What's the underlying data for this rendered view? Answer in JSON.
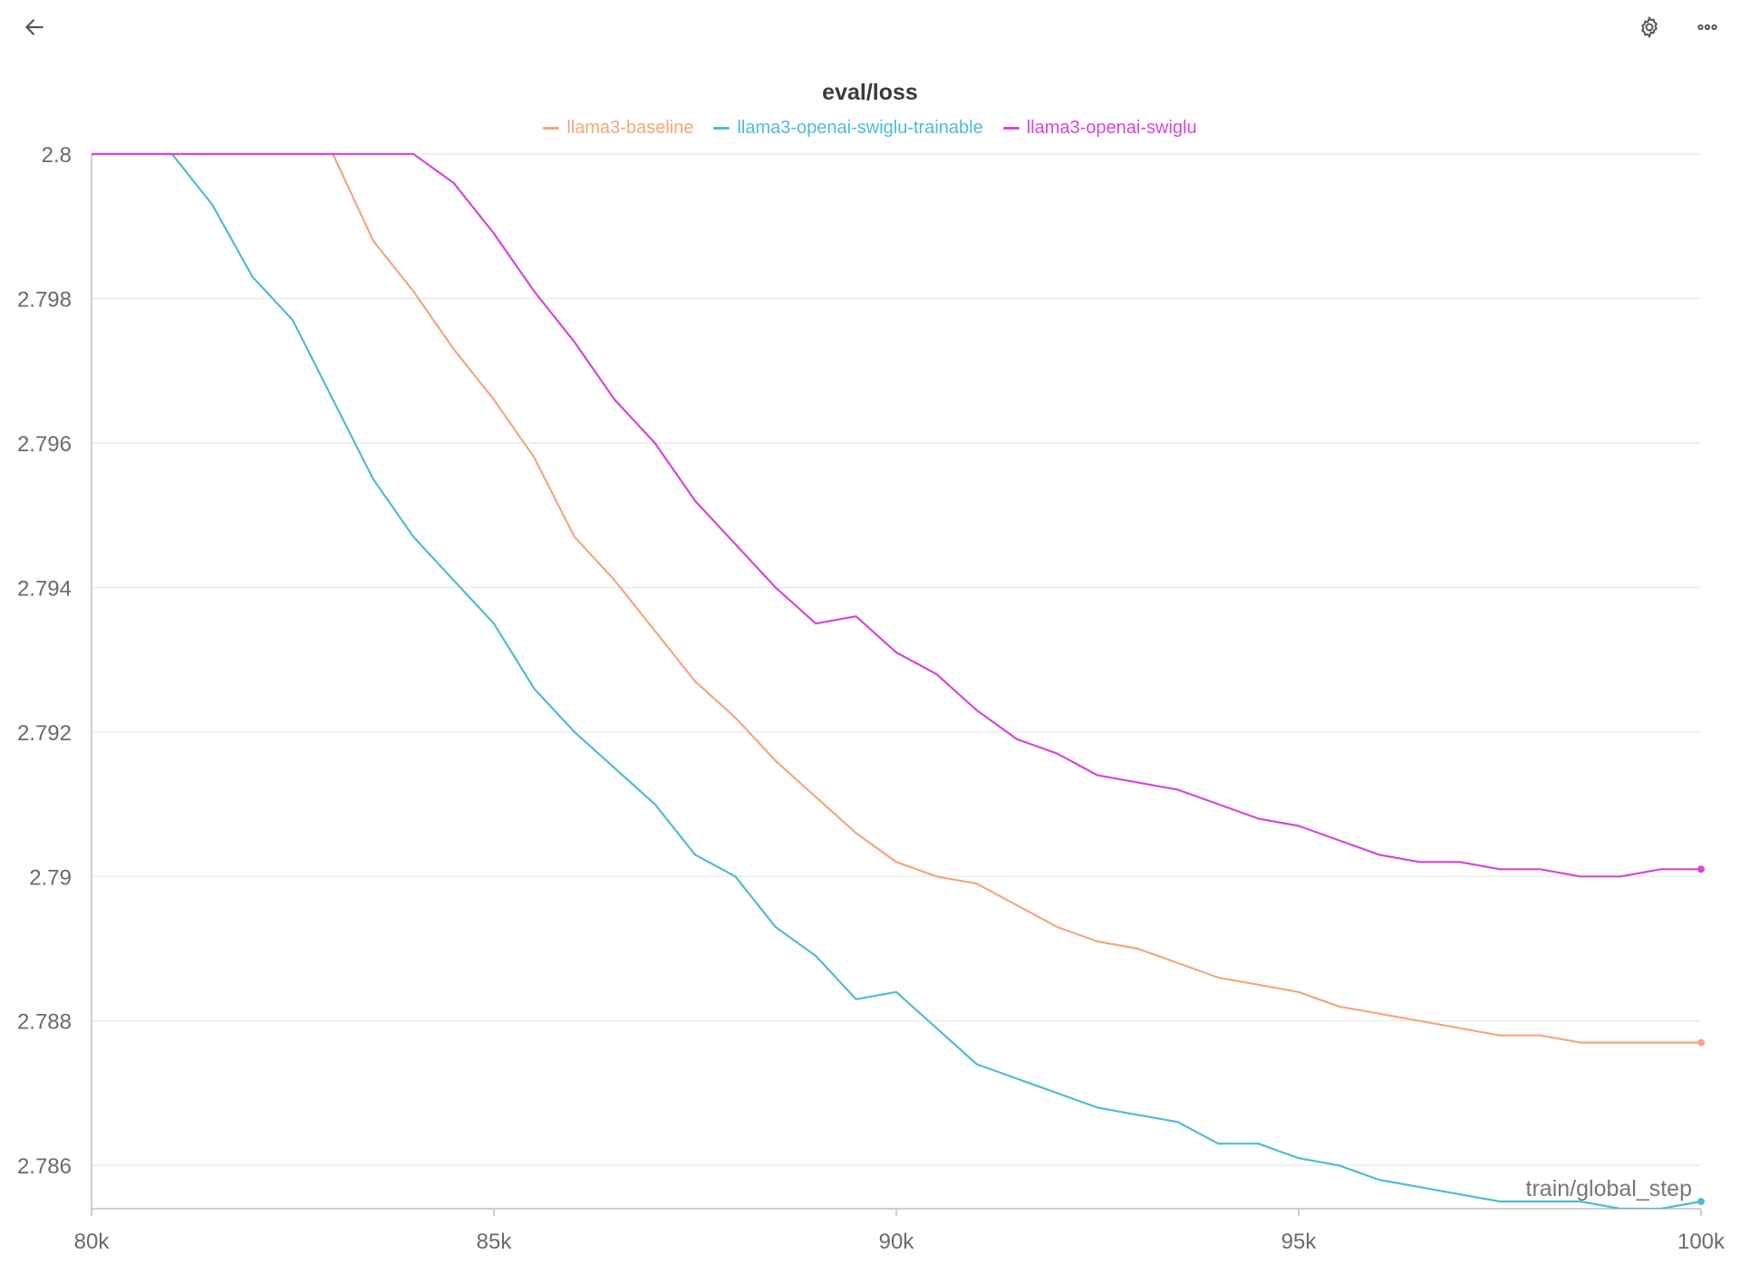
{
  "toolbar": {
    "back_icon": "arrow-left-icon",
    "settings_icon": "gear-icon",
    "more_icon": "more-horizontal-icon"
  },
  "chart_data": {
    "type": "line",
    "title": "eval/loss",
    "xlabel": "train/global_step",
    "ylabel": "",
    "xlim": [
      80000,
      100000
    ],
    "ylim": [
      2.7854,
      2.8
    ],
    "x_ticks": [
      80000,
      85000,
      90000,
      95000,
      100000
    ],
    "x_tick_labels": [
      "80k",
      "85k",
      "90k",
      "95k",
      "100k"
    ],
    "y_ticks": [
      2.786,
      2.788,
      2.79,
      2.792,
      2.794,
      2.796,
      2.798,
      2.8
    ],
    "y_tick_labels": [
      "2.786",
      "2.788",
      "2.79",
      "2.792",
      "2.794",
      "2.796",
      "2.798",
      "2.8"
    ],
    "grid": true,
    "legend_position": "top-center",
    "x": [
      80000,
      81000,
      81500,
      82000,
      82500,
      83000,
      83500,
      84000,
      84500,
      85000,
      85500,
      86000,
      86500,
      87000,
      87500,
      88000,
      88500,
      89000,
      89500,
      90000,
      90500,
      91000,
      91500,
      92000,
      92500,
      93000,
      93500,
      94000,
      94500,
      95000,
      95500,
      96000,
      96500,
      97000,
      97500,
      98000,
      98500,
      99000,
      99500,
      100000
    ],
    "series": [
      {
        "name": "llama3-baseline",
        "color": "#f5a67e",
        "values": [
          2.8,
          2.8,
          2.8,
          2.8,
          2.8,
          2.8,
          2.7988,
          2.7981,
          2.7973,
          2.7966,
          2.7958,
          2.7947,
          2.7941,
          2.7934,
          2.7927,
          2.7922,
          2.7916,
          2.7911,
          2.7906,
          2.7902,
          2.79,
          2.7899,
          2.7896,
          2.7893,
          2.7891,
          2.789,
          2.7888,
          2.7886,
          2.7885,
          2.7884,
          2.7882,
          2.7881,
          2.788,
          2.7879,
          2.7878,
          2.7878,
          2.7877,
          2.7877,
          2.7877,
          2.7877
        ]
      },
      {
        "name": "llama3-openai-swiglu-trainable",
        "color": "#4ebcd5",
        "values": [
          2.8,
          2.8,
          2.7993,
          2.7983,
          2.7977,
          2.7966,
          2.7955,
          2.7947,
          2.7941,
          2.7935,
          2.7926,
          2.792,
          2.7915,
          2.791,
          2.7903,
          2.79,
          2.7893,
          2.7889,
          2.7883,
          2.7884,
          2.7879,
          2.7874,
          2.7872,
          2.787,
          2.7868,
          2.7867,
          2.7866,
          2.7863,
          2.7863,
          2.7861,
          2.786,
          2.7858,
          2.7857,
          2.7856,
          2.7855,
          2.7855,
          2.7855,
          2.7854,
          2.7854,
          2.7855
        ]
      },
      {
        "name": "llama3-openai-swiglu",
        "color": "#d846d8",
        "values": [
          2.8,
          2.8,
          2.8,
          2.8,
          2.8,
          2.8,
          2.8,
          2.8,
          2.7996,
          2.7989,
          2.7981,
          2.7974,
          2.7966,
          2.796,
          2.7952,
          2.7946,
          2.794,
          2.7935,
          2.7936,
          2.7931,
          2.7928,
          2.7923,
          2.7919,
          2.7917,
          2.7914,
          2.7913,
          2.7912,
          2.791,
          2.7908,
          2.7907,
          2.7905,
          2.7903,
          2.7902,
          2.7902,
          2.7901,
          2.7901,
          2.79,
          2.79,
          2.7901,
          2.7901
        ]
      }
    ]
  }
}
